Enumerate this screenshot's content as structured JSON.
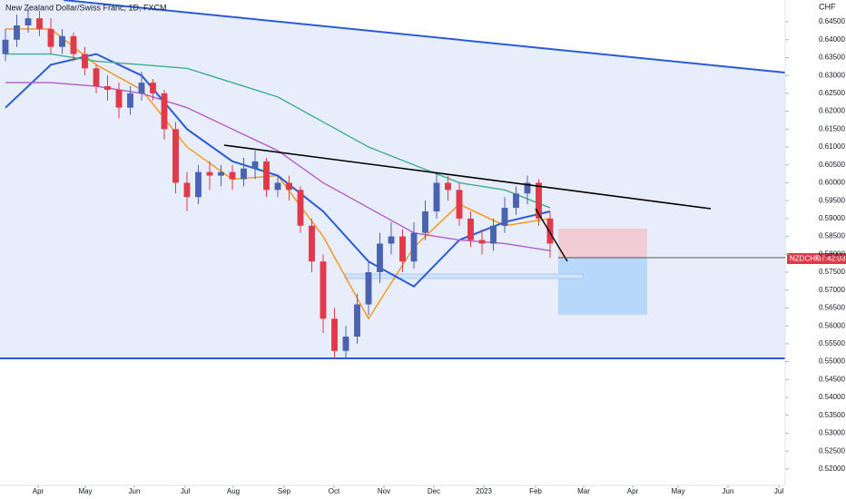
{
  "chart_data": {
    "type": "candlestick",
    "title": "New Zealand Dollar/Swiss Franc, 1D, FXCM",
    "y_axis_label": "CHF",
    "symbol": "NZDCHF",
    "countdown": "07:42:03",
    "up_color": "#4a63b0",
    "down_color": "#e0394a",
    "x": [
      0,
      1,
      2,
      3,
      4,
      5,
      6,
      7,
      8,
      9,
      10,
      11,
      12,
      13,
      14,
      15,
      16,
      17,
      18,
      19,
      20,
      21,
      22,
      23,
      24,
      25,
      26,
      27,
      28,
      29,
      30,
      31,
      32,
      33,
      34,
      35,
      36,
      37,
      38,
      39,
      40,
      41,
      42,
      43,
      44,
      45,
      46,
      47,
      48
    ],
    "close": [
      0.64,
      0.644,
      0.646,
      0.643,
      0.638,
      0.641,
      0.636,
      0.632,
      0.627,
      0.626,
      0.621,
      0.625,
      0.628,
      0.625,
      0.615,
      0.6,
      0.596,
      0.603,
      0.602,
      0.603,
      0.601,
      0.604,
      0.606,
      0.598,
      0.6,
      0.598,
      0.588,
      0.578,
      0.562,
      0.553,
      0.557,
      0.566,
      0.575,
      0.583,
      0.585,
      0.578,
      0.586,
      0.592,
      0.6,
      0.598,
      0.59,
      0.584,
      0.583,
      0.588,
      0.593,
      0.597,
      0.6,
      0.59,
      0.583
    ],
    "open": [
      0.636,
      0.64,
      0.644,
      0.646,
      0.643,
      0.638,
      0.641,
      0.636,
      0.632,
      0.627,
      0.626,
      0.621,
      0.625,
      0.628,
      0.625,
      0.615,
      0.6,
      0.596,
      0.603,
      0.602,
      0.603,
      0.601,
      0.604,
      0.606,
      0.598,
      0.6,
      0.598,
      0.588,
      0.578,
      0.562,
      0.553,
      0.557,
      0.566,
      0.575,
      0.583,
      0.585,
      0.578,
      0.586,
      0.592,
      0.6,
      0.598,
      0.59,
      0.584,
      0.583,
      0.588,
      0.593,
      0.597,
      0.6,
      0.59
    ],
    "high": [
      0.643,
      0.647,
      0.649,
      0.648,
      0.646,
      0.643,
      0.642,
      0.638,
      0.633,
      0.63,
      0.628,
      0.627,
      0.631,
      0.629,
      0.626,
      0.617,
      0.603,
      0.605,
      0.606,
      0.605,
      0.605,
      0.607,
      0.609,
      0.607,
      0.602,
      0.602,
      0.599,
      0.59,
      0.58,
      0.565,
      0.56,
      0.569,
      0.578,
      0.586,
      0.589,
      0.587,
      0.589,
      0.595,
      0.603,
      0.602,
      0.6,
      0.592,
      0.587,
      0.59,
      0.596,
      0.599,
      0.602,
      0.601,
      0.592
    ],
    "low": [
      0.634,
      0.638,
      0.642,
      0.641,
      0.636,
      0.636,
      0.634,
      0.63,
      0.625,
      0.623,
      0.618,
      0.619,
      0.623,
      0.623,
      0.612,
      0.597,
      0.592,
      0.594,
      0.598,
      0.599,
      0.598,
      0.599,
      0.601,
      0.596,
      0.596,
      0.595,
      0.586,
      0.575,
      0.558,
      0.551,
      0.551,
      0.555,
      0.563,
      0.572,
      0.58,
      0.575,
      0.576,
      0.584,
      0.59,
      0.595,
      0.588,
      0.582,
      0.58,
      0.581,
      0.586,
      0.591,
      0.594,
      0.588,
      0.579
    ],
    "series": [
      {
        "color": "#f7931a",
        "x": [
          0,
          4,
          8,
          12,
          16,
          20,
          24,
          28,
          32,
          36,
          40,
          44,
          48
        ],
        "values": [
          0.643,
          0.643,
          0.633,
          0.626,
          0.61,
          0.601,
          0.602,
          0.585,
          0.562,
          0.582,
          0.594,
          0.588,
          0.59
        ]
      },
      {
        "color": "#2a5bd7",
        "x": [
          0,
          4,
          8,
          12,
          16,
          20,
          24,
          28,
          32,
          36,
          40,
          44,
          48
        ],
        "values": [
          0.621,
          0.633,
          0.636,
          0.63,
          0.615,
          0.606,
          0.602,
          0.592,
          0.578,
          0.571,
          0.584,
          0.589,
          0.592
        ]
      },
      {
        "color": "#b45cc8",
        "x": [
          0,
          4,
          8,
          12,
          16,
          20,
          24,
          28,
          32,
          36,
          40,
          44,
          48
        ],
        "values": [
          0.628,
          0.628,
          0.627,
          0.625,
          0.621,
          0.615,
          0.609,
          0.6,
          0.593,
          0.586,
          0.584,
          0.583,
          0.581
        ]
      },
      {
        "color": "#3fae8f",
        "x": [
          0,
          4,
          8,
          12,
          16,
          20,
          24,
          28,
          32,
          36,
          40,
          44,
          48
        ],
        "values": [
          0.636,
          0.636,
          0.634,
          0.633,
          0.632,
          0.628,
          0.624,
          0.617,
          0.61,
          0.605,
          0.6,
          0.598,
          0.593
        ]
      }
    ],
    "xlim": [
      -0.48,
      68.72
    ],
    "xticks": [
      {
        "value": 2.88,
        "label": "Apr"
      },
      {
        "value": 7.04,
        "label": "May"
      },
      {
        "value": 11.36,
        "label": "Jun"
      },
      {
        "value": 15.84,
        "label": "Jul"
      },
      {
        "value": 20.08,
        "label": "Aug"
      },
      {
        "value": 24.56,
        "label": "Sep"
      },
      {
        "value": 28.96,
        "label": "Oct"
      },
      {
        "value": 33.36,
        "label": "Nov"
      },
      {
        "value": 37.76,
        "label": "Dec"
      },
      {
        "value": 42.16,
        "label": "2023"
      },
      {
        "value": 46.72,
        "label": "Feb"
      },
      {
        "value": 50.96,
        "label": "Mar"
      },
      {
        "value": 55.28,
        "label": "Apr"
      },
      {
        "value": 59.28,
        "label": "May"
      },
      {
        "value": 63.68,
        "label": "Jun"
      },
      {
        "value": 68.16,
        "label": "Jul"
      }
    ],
    "ylim": [
      0.5154,
      0.6511
    ],
    "yticks": [
      {
        "value": 0.645,
        "label": "0.64500"
      },
      {
        "value": 0.64,
        "label": "0.64000"
      },
      {
        "value": 0.635,
        "label": "0.63500"
      },
      {
        "value": 0.63,
        "label": "0.63000"
      },
      {
        "value": 0.625,
        "label": "0.62500"
      },
      {
        "value": 0.62,
        "label": "0.62000"
      },
      {
        "value": 0.615,
        "label": "0.61500"
      },
      {
        "value": 0.61,
        "label": "0.61000"
      },
      {
        "value": 0.605,
        "label": "0.60500"
      },
      {
        "value": 0.6,
        "label": "0.60000"
      },
      {
        "value": 0.595,
        "label": "0.59500"
      },
      {
        "value": 0.59,
        "label": "0.59000"
      },
      {
        "value": 0.585,
        "label": "0.58500"
      },
      {
        "value": 0.58,
        "label": "0.58000"
      },
      {
        "value": 0.575,
        "label": "0.57500"
      },
      {
        "value": 0.57,
        "label": "0.57000"
      },
      {
        "value": 0.565,
        "label": "0.56500"
      },
      {
        "value": 0.56,
        "label": "0.56000"
      },
      {
        "value": 0.555,
        "label": "0.55500"
      },
      {
        "value": 0.55,
        "label": "0.55000"
      },
      {
        "value": 0.545,
        "label": "0.54500"
      },
      {
        "value": 0.54,
        "label": "0.54000"
      },
      {
        "value": 0.535,
        "label": "0.53500"
      },
      {
        "value": 0.53,
        "label": "0.53000"
      },
      {
        "value": 0.525,
        "label": "0.52500"
      },
      {
        "value": 0.52,
        "label": "0.52000"
      }
    ]
  }
}
